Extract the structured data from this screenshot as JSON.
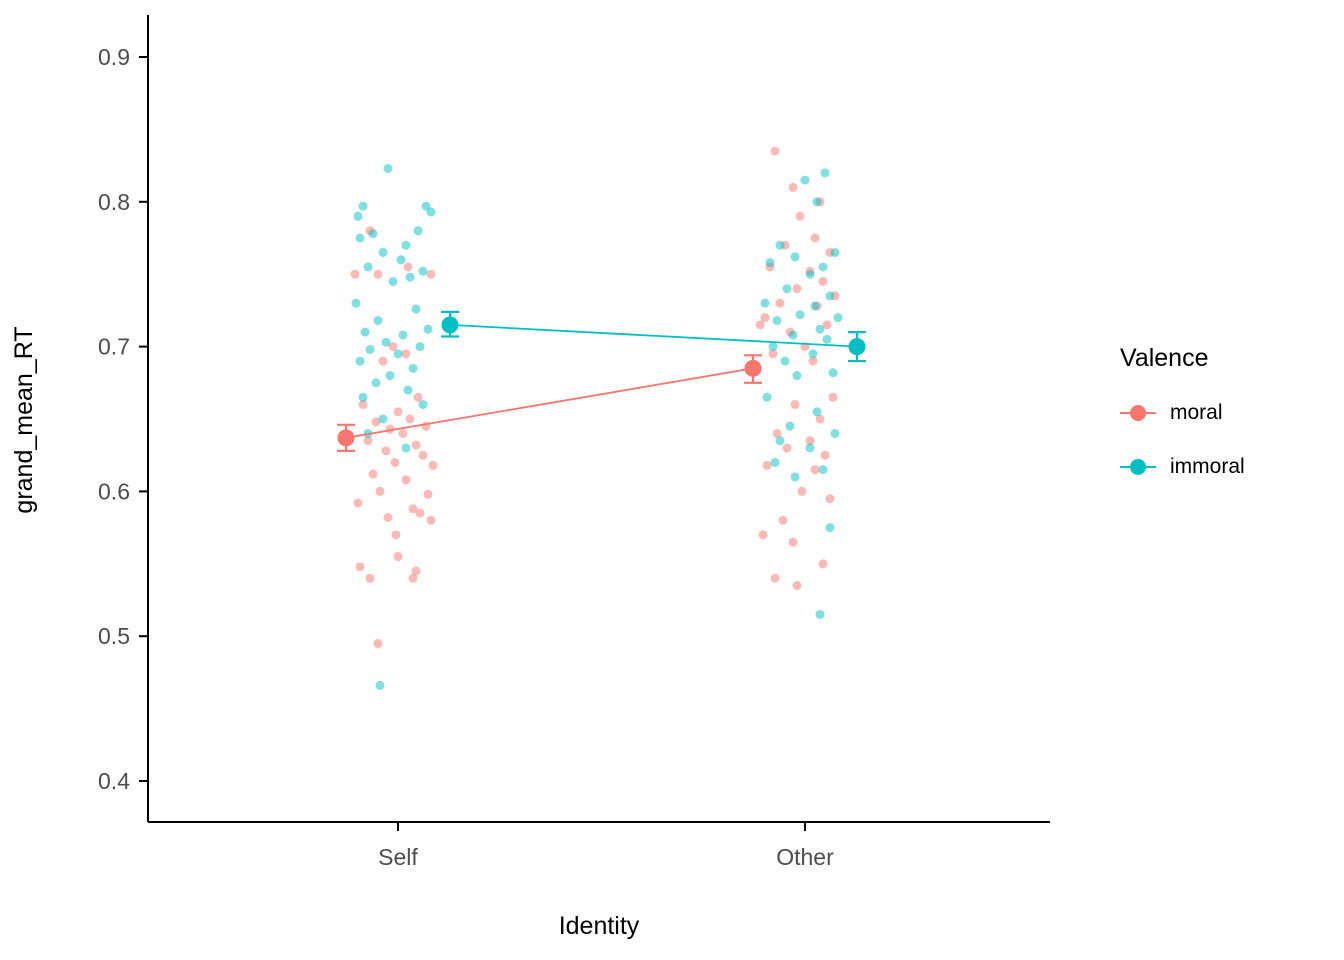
{
  "chart_data": {
    "type": "scatter",
    "title": "",
    "xlabel": "Identity",
    "ylabel": "grand_mean_RT",
    "categories": [
      "Self",
      "Other"
    ],
    "y_ticks": [
      0.4,
      0.5,
      0.6,
      0.7,
      0.8,
      0.9
    ],
    "ylim": [
      0.375,
      0.93
    ],
    "grid": false,
    "legend": {
      "title": "Valence",
      "position": "right",
      "entries": [
        {
          "label": "moral",
          "color": "#F8766D"
        },
        {
          "label": "immoral",
          "color": "#00BFC4"
        }
      ]
    },
    "series": [
      {
        "name": "moral",
        "color": "#F8766D",
        "means": [
          {
            "category": "Self",
            "mean": 0.637,
            "ci_low": 0.628,
            "ci_high": 0.646
          },
          {
            "category": "Other",
            "mean": 0.685,
            "ci_low": 0.675,
            "ci_high": 0.694
          }
        ],
        "points": {
          "Self": [
            [
              -43,
              0.75
            ],
            [
              -20,
              0.75
            ],
            [
              -28,
              0.78
            ],
            [
              10,
              0.755
            ],
            [
              33,
              0.75
            ],
            [
              -5,
              0.7
            ],
            [
              8,
              0.695
            ],
            [
              -15,
              0.69
            ],
            [
              20,
              0.665
            ],
            [
              -35,
              0.66
            ],
            [
              0,
              0.655
            ],
            [
              12,
              0.65
            ],
            [
              -22,
              0.648
            ],
            [
              28,
              0.645
            ],
            [
              -8,
              0.643
            ],
            [
              5,
              0.64
            ],
            [
              -30,
              0.635
            ],
            [
              18,
              0.632
            ],
            [
              -12,
              0.628
            ],
            [
              25,
              0.625
            ],
            [
              -3,
              0.62
            ],
            [
              35,
              0.618
            ],
            [
              -25,
              0.612
            ],
            [
              8,
              0.608
            ],
            [
              -18,
              0.6
            ],
            [
              30,
              0.598
            ],
            [
              -40,
              0.592
            ],
            [
              15,
              0.588
            ],
            [
              22,
              0.585
            ],
            [
              -10,
              0.582
            ],
            [
              33,
              0.58
            ],
            [
              -2,
              0.57
            ],
            [
              0,
              0.555
            ],
            [
              -38,
              0.548
            ],
            [
              18,
              0.545
            ],
            [
              -28,
              0.54
            ],
            [
              15,
              0.54
            ],
            [
              -20,
              0.495
            ]
          ],
          "Other": [
            [
              -30,
              0.835
            ],
            [
              -12,
              0.81
            ],
            [
              15,
              0.8
            ],
            [
              -5,
              0.79
            ],
            [
              10,
              0.775
            ],
            [
              -20,
              0.77
            ],
            [
              25,
              0.765
            ],
            [
              -35,
              0.755
            ],
            [
              5,
              0.752
            ],
            [
              18,
              0.745
            ],
            [
              -8,
              0.74
            ],
            [
              30,
              0.735
            ],
            [
              -25,
              0.73
            ],
            [
              12,
              0.728
            ],
            [
              -40,
              0.72
            ],
            [
              22,
              0.715
            ],
            [
              -15,
              0.71
            ],
            [
              0,
              0.7
            ],
            [
              -32,
              0.695
            ],
            [
              8,
              0.69
            ],
            [
              -45,
              0.715
            ],
            [
              28,
              0.665
            ],
            [
              -10,
              0.66
            ],
            [
              15,
              0.65
            ],
            [
              -28,
              0.64
            ],
            [
              5,
              0.635
            ],
            [
              -18,
              0.63
            ],
            [
              20,
              0.625
            ],
            [
              -38,
              0.618
            ],
            [
              10,
              0.615
            ],
            [
              -3,
              0.6
            ],
            [
              25,
              0.595
            ],
            [
              -22,
              0.58
            ],
            [
              -42,
              0.57
            ],
            [
              -12,
              0.565
            ],
            [
              18,
              0.55
            ],
            [
              -30,
              0.54
            ],
            [
              -8,
              0.535
            ]
          ]
        }
      },
      {
        "name": "immoral",
        "color": "#00BFC4",
        "means": [
          {
            "category": "Self",
            "mean": 0.715,
            "ci_low": 0.707,
            "ci_high": 0.724
          },
          {
            "category": "Other",
            "mean": 0.7,
            "ci_low": 0.69,
            "ci_high": 0.71
          }
        ],
        "points": {
          "Self": [
            [
              -10,
              0.823
            ],
            [
              -35,
              0.797
            ],
            [
              28,
              0.797
            ],
            [
              33,
              0.793
            ],
            [
              -40,
              0.79
            ],
            [
              20,
              0.78
            ],
            [
              -25,
              0.778
            ],
            [
              -38,
              0.775
            ],
            [
              8,
              0.77
            ],
            [
              -15,
              0.765
            ],
            [
              3,
              0.76
            ],
            [
              -30,
              0.755
            ],
            [
              25,
              0.752
            ],
            [
              12,
              0.748
            ],
            [
              -5,
              0.745
            ],
            [
              -42,
              0.73
            ],
            [
              18,
              0.726
            ],
            [
              -20,
              0.718
            ],
            [
              30,
              0.712
            ],
            [
              -33,
              0.71
            ],
            [
              5,
              0.708
            ],
            [
              -12,
              0.703
            ],
            [
              22,
              0.7
            ],
            [
              -28,
              0.698
            ],
            [
              0,
              0.695
            ],
            [
              -38,
              0.69
            ],
            [
              15,
              0.685
            ],
            [
              -8,
              0.68
            ],
            [
              -22,
              0.675
            ],
            [
              10,
              0.67
            ],
            [
              -35,
              0.665
            ],
            [
              25,
              0.66
            ],
            [
              -15,
              0.65
            ],
            [
              -30,
              0.64
            ],
            [
              8,
              0.63
            ],
            [
              -18,
              0.466
            ]
          ],
          "Other": [
            [
              20,
              0.82
            ],
            [
              0,
              0.815
            ],
            [
              12,
              0.8
            ],
            [
              -25,
              0.77
            ],
            [
              30,
              0.765
            ],
            [
              -10,
              0.762
            ],
            [
              -35,
              0.758
            ],
            [
              18,
              0.755
            ],
            [
              5,
              0.75
            ],
            [
              -18,
              0.74
            ],
            [
              25,
              0.735
            ],
            [
              -40,
              0.73
            ],
            [
              10,
              0.728
            ],
            [
              -5,
              0.722
            ],
            [
              33,
              0.72
            ],
            [
              -28,
              0.718
            ],
            [
              15,
              0.712
            ],
            [
              -12,
              0.708
            ],
            [
              22,
              0.705
            ],
            [
              -32,
              0.7
            ],
            [
              8,
              0.695
            ],
            [
              -20,
              0.69
            ],
            [
              28,
              0.682
            ],
            [
              -8,
              0.68
            ],
            [
              -38,
              0.665
            ],
            [
              12,
              0.655
            ],
            [
              -15,
              0.645
            ],
            [
              30,
              0.64
            ],
            [
              -25,
              0.635
            ],
            [
              5,
              0.63
            ],
            [
              -30,
              0.62
            ],
            [
              18,
              0.615
            ],
            [
              -10,
              0.61
            ],
            [
              25,
              0.575
            ],
            [
              15,
              0.515
            ]
          ]
        }
      }
    ]
  }
}
